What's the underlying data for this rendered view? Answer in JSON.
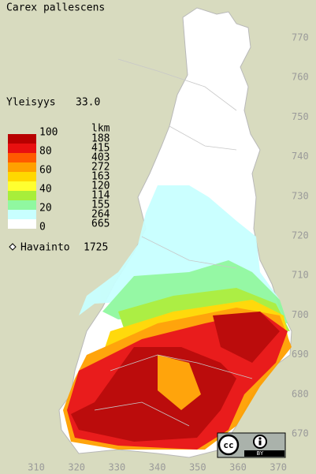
{
  "title": "Carex pallescens",
  "frequency": {
    "label": "Yleisyys",
    "value": "33.0"
  },
  "legend": {
    "scale": [
      100,
      80,
      60,
      40,
      20,
      0
    ],
    "count_header": "lkm",
    "counts": [
      188,
      415,
      403,
      272,
      163,
      120,
      114,
      155,
      264,
      665
    ],
    "colors": [
      "#b80000",
      "#e81010",
      "#ff5a00",
      "#ffa000",
      "#ffd800",
      "#ffff30",
      "#a8ee3a",
      "#90f8a0",
      "#c8ffff",
      "#ffffff"
    ]
  },
  "observations": {
    "label": "Havainto",
    "value": 1725
  },
  "northing": [
    770,
    760,
    750,
    740,
    730,
    720,
    710,
    700,
    690,
    680,
    670
  ],
  "easting": [
    310,
    320,
    330,
    340,
    350,
    360,
    370
  ],
  "license": {
    "icon": "cc",
    "label": "BY"
  }
}
